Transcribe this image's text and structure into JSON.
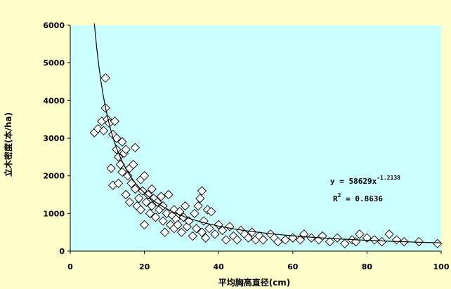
{
  "colors": {
    "page_background": "#FFFFCC",
    "plot_background": "#CCFFFF",
    "marker_fill": "#FFFFFF",
    "marker_stroke": "#000000",
    "trendline": "#000000"
  },
  "chart_data": {
    "type": "scatter",
    "title": "",
    "xlabel": "平均胸高直径(cm)",
    "ylabel": "立木密度(本/ha)",
    "xlim": [
      0,
      100
    ],
    "ylim": [
      0,
      6000
    ],
    "xticks": [
      0,
      20,
      40,
      60,
      80,
      100
    ],
    "yticks": [
      0,
      1000,
      2000,
      3000,
      4000,
      5000,
      6000
    ],
    "xtick_labels": [
      "0",
      "20",
      "40",
      "60",
      "80",
      "100"
    ],
    "ytick_labels": [
      "0",
      "1000",
      "2000",
      "3000",
      "4000",
      "5000",
      "6000"
    ],
    "grid": false,
    "legend": "none",
    "marker": "diamond",
    "series": [
      {
        "points": [
          [
            6.5,
            3150
          ],
          [
            7.5,
            3250
          ],
          [
            8.5,
            3450
          ],
          [
            9,
            3200
          ],
          [
            9.5,
            4600
          ],
          [
            9.5,
            3800
          ],
          [
            10,
            3500
          ],
          [
            10.5,
            3400
          ],
          [
            11,
            2200
          ],
          [
            11.5,
            1750
          ],
          [
            11.5,
            3100
          ],
          [
            12,
            3450
          ],
          [
            12.5,
            3000
          ],
          [
            12.5,
            2700
          ],
          [
            13,
            2500
          ],
          [
            13,
            1800
          ],
          [
            13.5,
            2300
          ],
          [
            14,
            2100
          ],
          [
            14,
            2900
          ],
          [
            14.5,
            2600
          ],
          [
            15,
            2700
          ],
          [
            15,
            1500
          ],
          [
            15.5,
            2000
          ],
          [
            16,
            2200
          ],
          [
            16,
            1300
          ],
          [
            16.5,
            1800
          ],
          [
            17,
            2300
          ],
          [
            17.5,
            1650
          ],
          [
            17.5,
            2750
          ],
          [
            18,
            1200
          ],
          [
            18.5,
            1400
          ],
          [
            19,
            1900
          ],
          [
            19,
            1100
          ],
          [
            19.5,
            1600
          ],
          [
            20,
            2000
          ],
          [
            20,
            700
          ],
          [
            20.5,
            1300
          ],
          [
            21,
            1500
          ],
          [
            21.5,
            1000
          ],
          [
            22,
            1200
          ],
          [
            22,
            1650
          ],
          [
            22.5,
            1400
          ],
          [
            23,
            900
          ],
          [
            23.5,
            1300
          ],
          [
            24,
            1100
          ],
          [
            24.5,
            1450
          ],
          [
            25,
            800
          ],
          [
            25,
            1200
          ],
          [
            25.5,
            500
          ],
          [
            26,
            1000
          ],
          [
            26.5,
            1500
          ],
          [
            27,
            700
          ],
          [
            27.5,
            950
          ],
          [
            28,
            1100
          ],
          [
            28,
            600
          ],
          [
            28.5,
            850
          ],
          [
            29,
            700
          ],
          [
            29.5,
            1050
          ],
          [
            30,
            500
          ],
          [
            30.5,
            900
          ],
          [
            31,
            1200
          ],
          [
            31.5,
            650
          ],
          [
            32,
            800
          ],
          [
            33,
            400
          ],
          [
            33.5,
            1000
          ],
          [
            34,
            600
          ],
          [
            34.5,
            1200
          ],
          [
            35,
            1400
          ],
          [
            35.5,
            1600
          ],
          [
            35.5,
            500
          ],
          [
            36,
            800
          ],
          [
            36.5,
            350
          ],
          [
            37,
            1100
          ],
          [
            37.5,
            600
          ],
          [
            38,
            1050
          ],
          [
            39,
            450
          ],
          [
            40,
            700
          ],
          [
            41,
            550
          ],
          [
            42,
            300
          ],
          [
            43,
            650
          ],
          [
            44,
            400
          ],
          [
            45,
            300
          ],
          [
            46,
            550
          ],
          [
            47,
            450
          ],
          [
            48,
            350
          ],
          [
            49,
            500
          ],
          [
            50,
            300
          ],
          [
            51,
            400
          ],
          [
            52,
            300
          ],
          [
            54,
            450
          ],
          [
            55,
            350
          ],
          [
            56,
            250
          ],
          [
            58,
            300
          ],
          [
            60,
            350
          ],
          [
            62,
            300
          ],
          [
            63,
            450
          ],
          [
            65,
            350
          ],
          [
            67,
            300
          ],
          [
            68,
            400
          ],
          [
            70,
            250
          ],
          [
            72,
            350
          ],
          [
            74,
            200
          ],
          [
            76,
            300
          ],
          [
            77,
            250
          ],
          [
            78,
            450
          ],
          [
            80,
            350
          ],
          [
            82,
            300
          ],
          [
            84,
            250
          ],
          [
            86,
            450
          ],
          [
            88,
            300
          ],
          [
            90,
            250
          ],
          [
            94,
            250
          ],
          [
            99,
            200
          ]
        ]
      }
    ],
    "trendline": {
      "equation": "y = 58629x⁻¹·²¹³⁸",
      "coefficient": 58629,
      "exponent": -1.2138,
      "r_squared": 0.8636,
      "x_range": [
        6.5,
        100
      ]
    },
    "annotations": {
      "equation_base": "y = 58629x",
      "equation_exponent": "-1.2138",
      "r2_prefix": "R",
      "r2_exponent": "2",
      "r2_value": " = 0.8636"
    }
  }
}
